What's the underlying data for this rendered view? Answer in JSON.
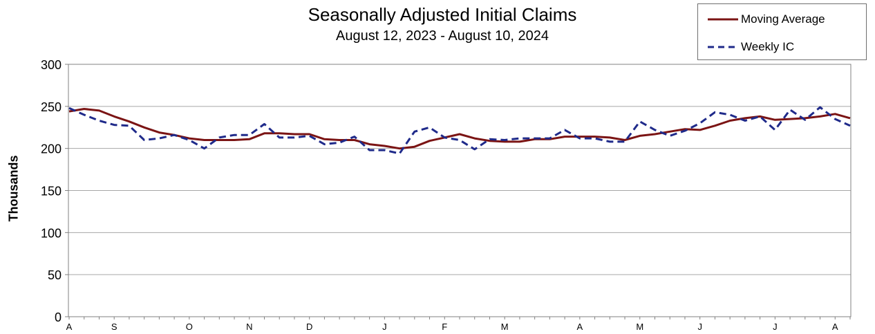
{
  "chart_data": {
    "type": "line",
    "title": "Seasonally Adjusted Initial Claims",
    "subtitle": "August 12, 2023 - August 10, 2024",
    "ylabel": "Thousands",
    "ylim": [
      0,
      300
    ],
    "yticks": [
      0,
      50,
      100,
      150,
      200,
      250,
      300
    ],
    "grid": true,
    "legend_position": "top-right",
    "x_tick_labels": [
      {
        "label": "A",
        "week": 0
      },
      {
        "label": "S",
        "week": 3
      },
      {
        "label": "O",
        "week": 8
      },
      {
        "label": "N",
        "week": 12
      },
      {
        "label": "D",
        "week": 16
      },
      {
        "label": "J",
        "week": 21
      },
      {
        "label": "F",
        "week": 25
      },
      {
        "label": "M",
        "week": 29
      },
      {
        "label": "A",
        "week": 34
      },
      {
        "label": "M",
        "week": 38
      },
      {
        "label": "J",
        "week": 42
      },
      {
        "label": "J",
        "week": 47
      },
      {
        "label": "A",
        "week": 51
      }
    ],
    "series": [
      {
        "name": "Moving Average",
        "color": "#7b1414",
        "style": "solid",
        "values": [
          244,
          247,
          245,
          238,
          232,
          225,
          219,
          216,
          212,
          210,
          210,
          210,
          211,
          218,
          218,
          217,
          217,
          211,
          210,
          210,
          205,
          203,
          200,
          202,
          209,
          213,
          217,
          212,
          209,
          208,
          208,
          211,
          211,
          214,
          214,
          214,
          213,
          210,
          215,
          217,
          220,
          223,
          222,
          227,
          233,
          236,
          238,
          234,
          235,
          236,
          238,
          241,
          236
        ]
      },
      {
        "name": "Weekly IC",
        "color": "#1f2a8a",
        "style": "dashed",
        "values": [
          248,
          240,
          233,
          228,
          227,
          210,
          212,
          216,
          210,
          200,
          213,
          216,
          216,
          229,
          213,
          213,
          215,
          205,
          207,
          214,
          198,
          198,
          194,
          220,
          225,
          213,
          210,
          199,
          211,
          210,
          212,
          212,
          212,
          222,
          212,
          212,
          208,
          208,
          232,
          222,
          215,
          221,
          230,
          243,
          240,
          233,
          238,
          222,
          246,
          234,
          249,
          235,
          227
        ]
      }
    ]
  }
}
